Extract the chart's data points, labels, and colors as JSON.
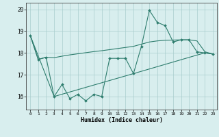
{
  "xlabel": "Humidex (Indice chaleur)",
  "x": [
    0,
    1,
    2,
    3,
    4,
    5,
    6,
    7,
    8,
    9,
    10,
    11,
    12,
    13,
    14,
    15,
    16,
    17,
    18,
    19,
    20,
    21,
    22,
    23
  ],
  "jagged_y": [
    18.8,
    17.7,
    17.8,
    16.0,
    16.55,
    15.9,
    16.1,
    15.8,
    16.1,
    16.0,
    17.75,
    17.75,
    17.75,
    17.05,
    18.3,
    19.95,
    19.4,
    19.25,
    18.5,
    18.6,
    18.6,
    18.05,
    18.0,
    17.95
  ],
  "upper_x": [
    0,
    1,
    2,
    3,
    4,
    5,
    6,
    7,
    8,
    9,
    10,
    11,
    12,
    13,
    14,
    15,
    16,
    17,
    18,
    19,
    20,
    21,
    22,
    23
  ],
  "upper_y": [
    18.8,
    17.7,
    17.8,
    17.78,
    17.85,
    17.91,
    17.96,
    18.01,
    18.06,
    18.1,
    18.15,
    18.2,
    18.25,
    18.3,
    18.4,
    18.5,
    18.55,
    18.58,
    18.59,
    18.6,
    18.6,
    18.55,
    18.05,
    17.95
  ],
  "lower_x": [
    0,
    3,
    13,
    21,
    22,
    23
  ],
  "lower_y": [
    18.8,
    16.0,
    17.05,
    17.9,
    18.0,
    17.95
  ],
  "line_color": "#2e7d6e",
  "bg_color": "#d8eeee",
  "grid_color": "#aacece",
  "ylim": [
    15.4,
    20.3
  ],
  "yticks": [
    16,
    17,
    18,
    19,
    20
  ],
  "xlim": [
    -0.5,
    23.5
  ],
  "xticks": [
    0,
    1,
    2,
    3,
    4,
    5,
    6,
    7,
    8,
    9,
    10,
    11,
    12,
    13,
    14,
    15,
    16,
    17,
    18,
    19,
    20,
    21,
    22,
    23
  ]
}
